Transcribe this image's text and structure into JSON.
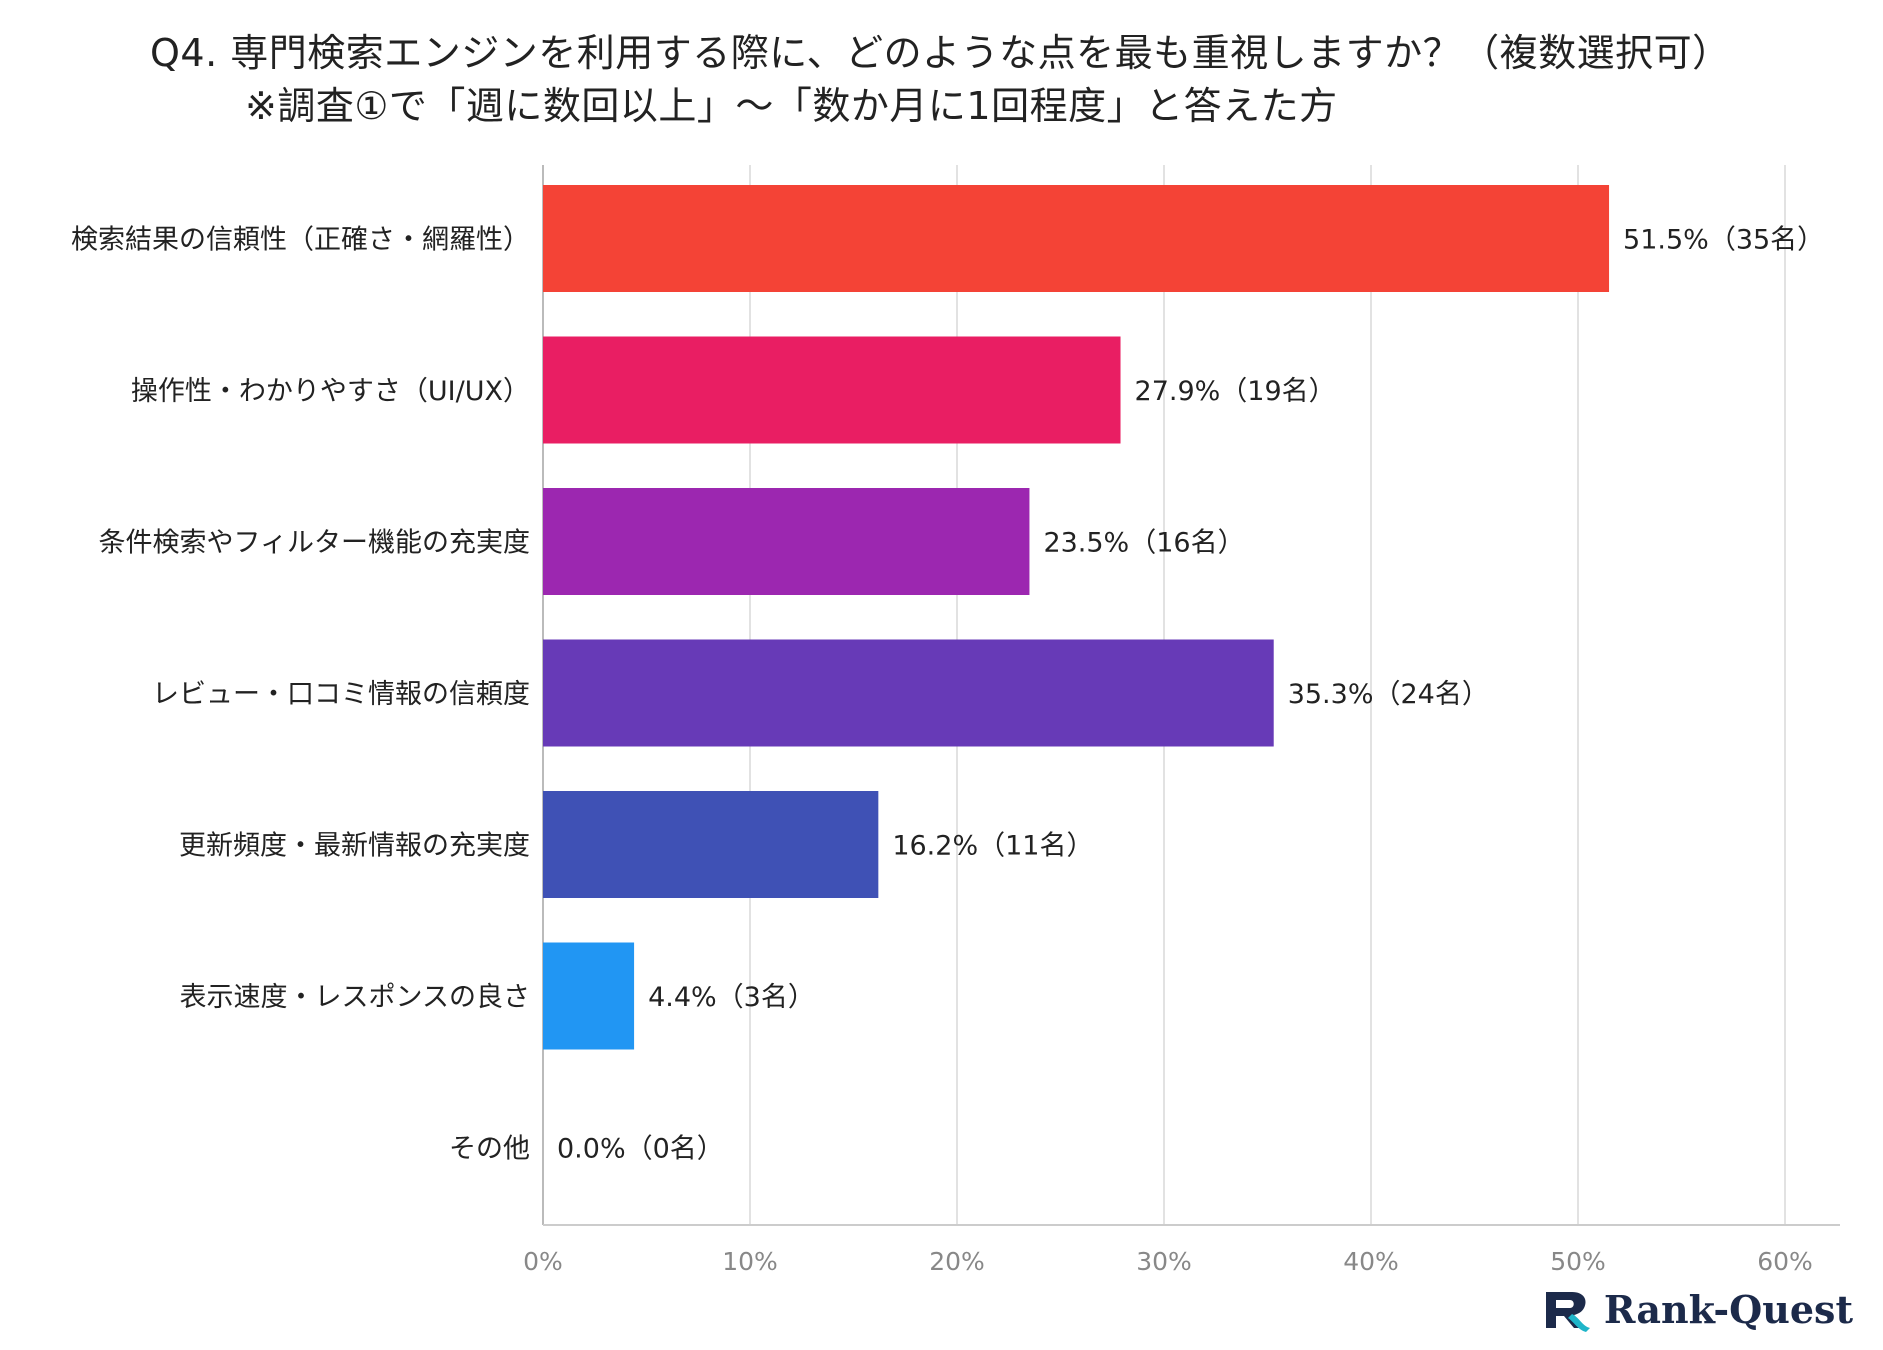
{
  "title": {
    "line1": "Q4. 専門検索エンジンを利用する際に、どのような点を最も重視しますか？（複数選択可）",
    "line2": "※調査①で「週に数回以上」～「数か月に1回程度」と答えた方"
  },
  "chart_data": {
    "type": "bar",
    "orientation": "horizontal",
    "categories": [
      "検索結果の信頼性（正確さ・網羅性）",
      "操作性・わかりやすさ（UI/UX）",
      "条件検索やフィルター機能の充実度",
      "レビュー・口コミ情報の信頼度",
      "更新頻度・最新情報の充実度",
      "表示速度・レスポンスの良さ",
      "その他"
    ],
    "values": [
      51.5,
      27.9,
      23.5,
      35.3,
      16.2,
      4.4,
      0.0
    ],
    "counts": [
      35,
      19,
      16,
      24,
      11,
      3,
      0
    ],
    "value_labels": [
      "51.5%（35名）",
      "27.9%（19名）",
      "23.5%（16名）",
      "35.3%（24名）",
      "16.2%（11名）",
      "4.4%（3名）",
      "0.0%（0名）"
    ],
    "colors": [
      "#f44336",
      "#e91e63",
      "#9c27b0",
      "#673ab7",
      "#3f51b5",
      "#2196f3",
      "#03a9f4"
    ],
    "xlim": [
      0,
      60
    ],
    "xticks": [
      "0%",
      "10%",
      "20%",
      "30%",
      "40%",
      "50%",
      "60%"
    ],
    "grid": true
  },
  "logo": {
    "text": "Rank-Quest",
    "color": "#1c2a4a",
    "accent": "#1fb5c9"
  }
}
